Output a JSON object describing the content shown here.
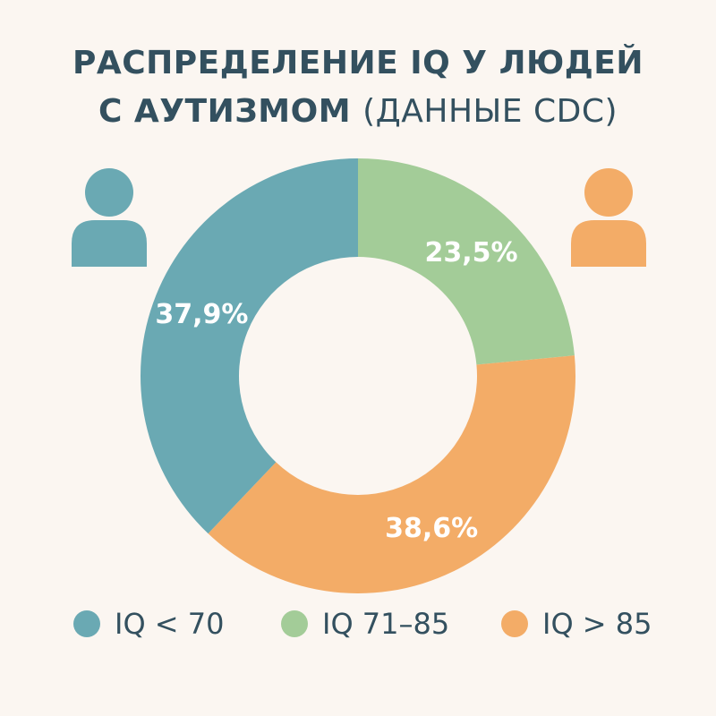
{
  "title": {
    "line1": "РАСПРЕДЕЛЕНИЕ IQ У ЛЮДЕЙ",
    "line2_bold": "С АУТИЗМОМ",
    "line2_light": "(ДАННЫЕ CDC)"
  },
  "colors": {
    "teal": "#6aa9b3",
    "green": "#a3cc98",
    "orange": "#f3ac67",
    "text": "#33505f",
    "background": "#fbf6f1"
  },
  "icons": {
    "left": "person-icon",
    "right": "person-icon"
  },
  "chart_data": {
    "type": "pie",
    "title": "РАСПРЕДЕЛЕНИЕ IQ У ЛЮДЕЙ С АУТИЗМОМ (ДАННЫЕ CDC)",
    "donut": true,
    "categories": [
      "IQ < 70",
      "IQ 71–85",
      "IQ > 85"
    ],
    "values": [
      37.9,
      23.5,
      38.6
    ],
    "data_labels": [
      "37,9%",
      "23,5%",
      "38,6%"
    ],
    "colors": [
      "#6aa9b3",
      "#a3cc98",
      "#f3ac67"
    ],
    "legend_position": "bottom"
  }
}
